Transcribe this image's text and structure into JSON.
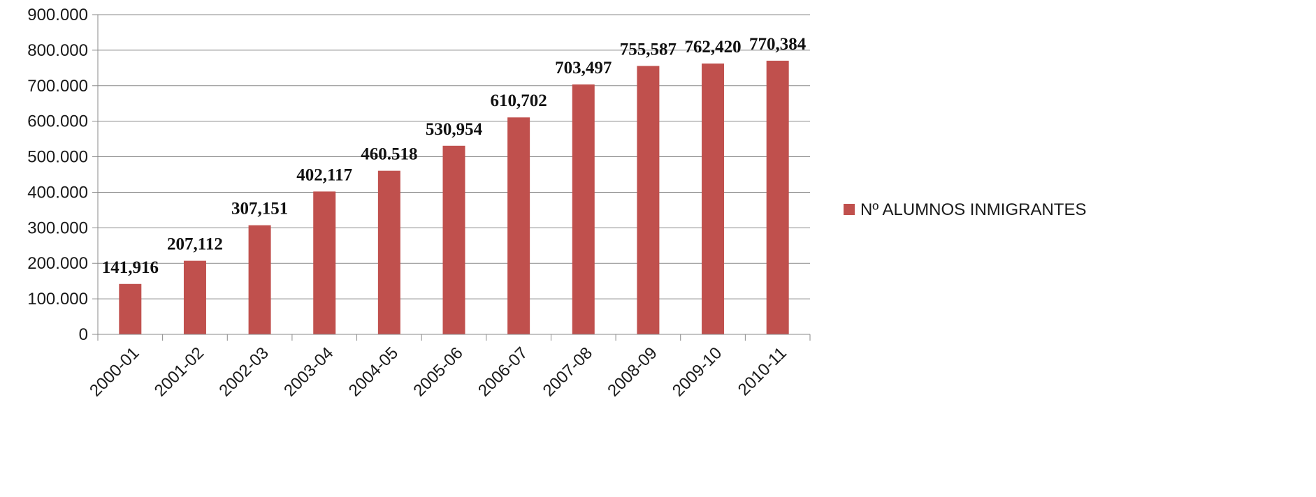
{
  "chart_data": {
    "type": "bar",
    "categories": [
      "2000-01",
      "2001-02",
      "2002-03",
      "2003-04",
      "2004-05",
      "2005-06",
      "2006-07",
      "2007-08",
      "2008-09",
      "2009-10",
      "2010-11"
    ],
    "series": [
      {
        "name": "Nº ALUMNOS INMIGRANTES",
        "values": [
          141916,
          207112,
          307151,
          402117,
          460518,
          530954,
          610702,
          703497,
          755587,
          762420,
          770384
        ],
        "data_labels": [
          "141,916",
          "207,112",
          "307,151",
          "402,117",
          "460.518",
          "530,954",
          "610,702",
          "703,497",
          "755,587",
          "762,420",
          "770,384"
        ],
        "color": "#c0504d"
      }
    ],
    "y_ticks": [
      "0",
      "100.000",
      "200.000",
      "300.000",
      "400.000",
      "500.000",
      "600.000",
      "700.000",
      "800.000",
      "900.000"
    ],
    "ylim": [
      0,
      900000
    ],
    "grid": true,
    "legend_position": "right",
    "title": "",
    "xlabel": "",
    "ylabel": ""
  }
}
